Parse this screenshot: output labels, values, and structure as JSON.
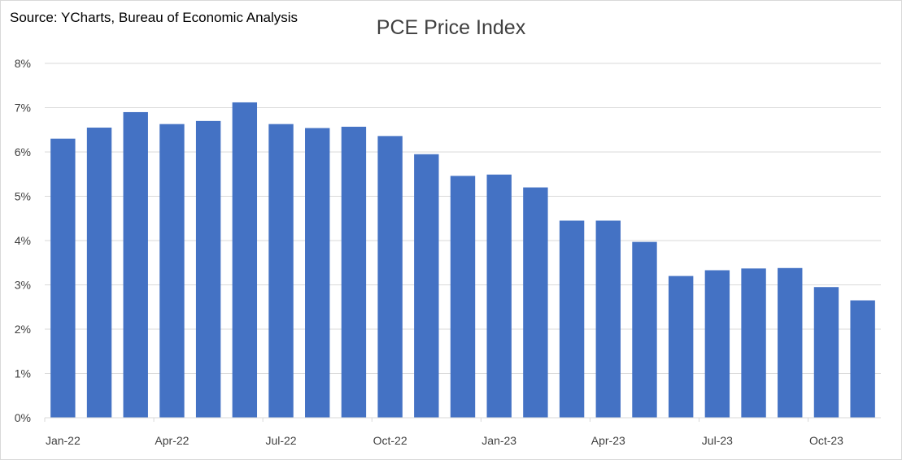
{
  "source_text": "Source: YCharts, Bureau of Economic Analysis",
  "chart_data": {
    "type": "bar",
    "title": "PCE Price Index",
    "xlabel": "",
    "ylabel": "",
    "ylim": [
      0,
      8
    ],
    "ytick_labels": [
      "0%",
      "1%",
      "2%",
      "3%",
      "4%",
      "5%",
      "6%",
      "7%",
      "8%"
    ],
    "categories": [
      "Jan-22",
      "Feb-22",
      "Mar-22",
      "Apr-22",
      "May-22",
      "Jun-22",
      "Jul-22",
      "Aug-22",
      "Sep-22",
      "Oct-22",
      "Nov-22",
      "Dec-22",
      "Jan-23",
      "Feb-23",
      "Mar-23",
      "Apr-23",
      "May-23",
      "Jun-23",
      "Jul-23",
      "Aug-23",
      "Sep-23",
      "Oct-23",
      "Nov-23"
    ],
    "xtick_labels": [
      "Jan-22",
      "Apr-22",
      "Jul-22",
      "Oct-22",
      "Jan-23",
      "Apr-23",
      "Jul-23",
      "Oct-23"
    ],
    "values": [
      6.3,
      6.55,
      6.9,
      6.63,
      6.7,
      7.12,
      6.63,
      6.54,
      6.57,
      6.36,
      5.95,
      5.46,
      5.49,
      5.2,
      4.45,
      4.45,
      3.97,
      3.2,
      3.33,
      3.37,
      3.38,
      2.95,
      2.65
    ],
    "bar_color": "#4472C4",
    "grid": true
  }
}
